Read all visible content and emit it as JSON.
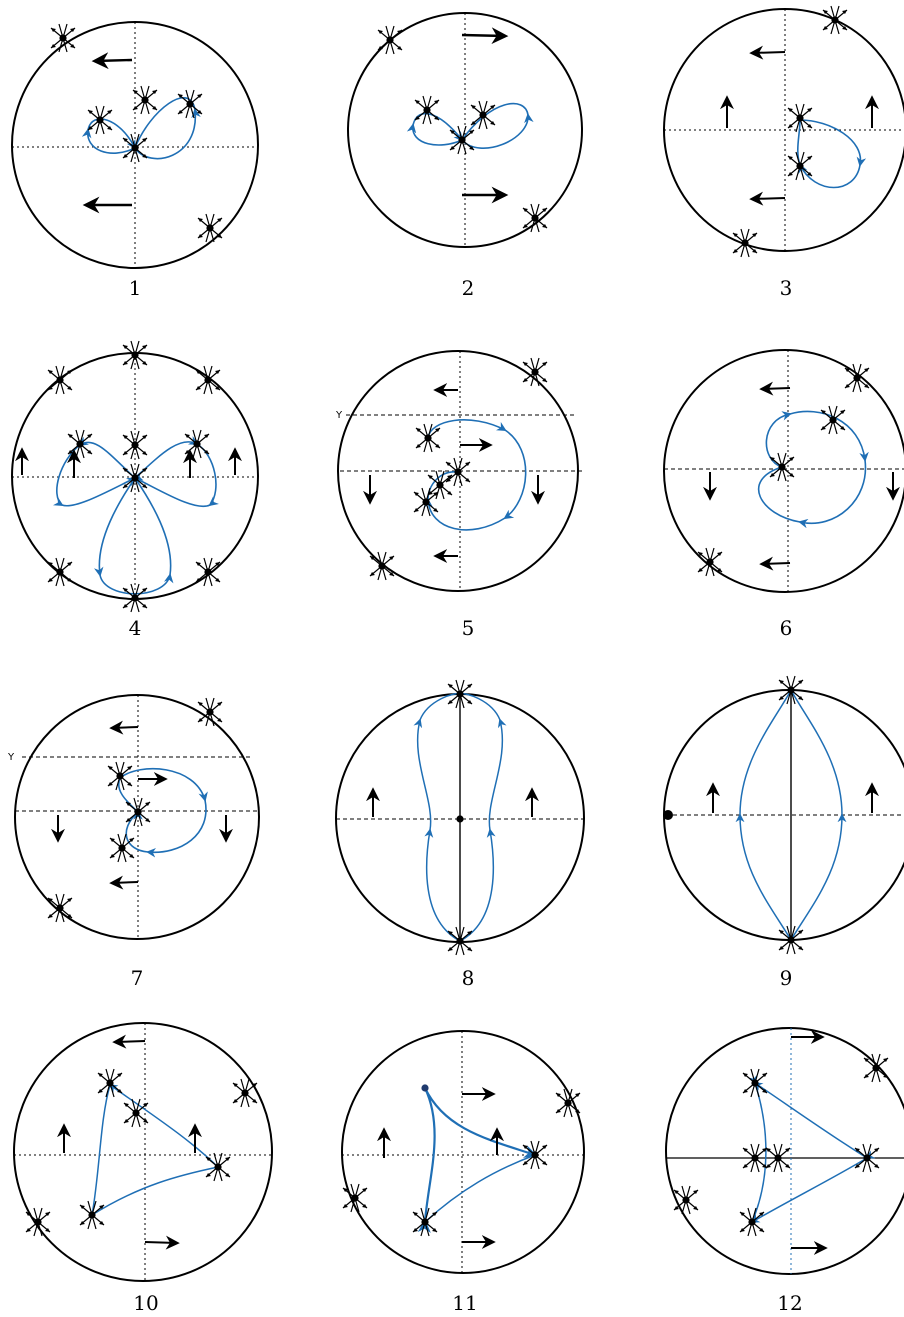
{
  "colors": {
    "outline": "#000000",
    "orbit": "#1f6fb5",
    "axis": "#000000"
  },
  "icons": {
    "equilibrium": "filled-dot",
    "flow": "arrow",
    "separatrix": "blue-curve"
  },
  "panels": [
    {
      "label": "1"
    },
    {
      "label": "2"
    },
    {
      "label": "3"
    },
    {
      "label": "4"
    },
    {
      "label": "5",
      "side_label": "Y"
    },
    {
      "label": "6"
    },
    {
      "label": "7",
      "side_label": "Y"
    },
    {
      "label": "8"
    },
    {
      "label": "9"
    },
    {
      "label": "10"
    },
    {
      "label": "11"
    },
    {
      "label": "12"
    }
  ]
}
